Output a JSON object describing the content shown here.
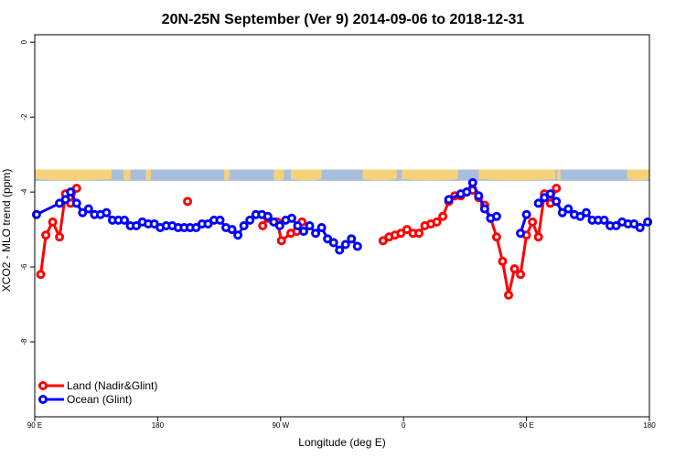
{
  "chart_data": {
    "type": "line",
    "title": "20N-25N September (Ver 9)   2014-09-06 to 2018-12-31",
    "xlabel": "Longitude (deg E)",
    "ylabel": "XCO2 - MLO trend (ppm)",
    "xlim": [
      90,
      450
    ],
    "ylim": [
      -10,
      0.2
    ],
    "x_ticks": [
      {
        "value": 90,
        "label": "90 E"
      },
      {
        "value": 162,
        "label": "180"
      },
      {
        "value": 234,
        "label": "90 W"
      },
      {
        "value": 306,
        "label": "0"
      },
      {
        "value": 378,
        "label": "90 E"
      },
      {
        "value": 450,
        "label": "180"
      }
    ],
    "y_ticks": [
      {
        "value": 0,
        "label": "0"
      },
      {
        "value": -2,
        "label": "-2"
      },
      {
        "value": -4,
        "label": "-4"
      },
      {
        "value": -6,
        "label": "-6"
      },
      {
        "value": -8,
        "label": "-8"
      }
    ],
    "legend": {
      "position": "bottom-left"
    },
    "map_strip": {
      "y_top": -3.4,
      "y_bottom": -3.7,
      "ocean_color": "#a8bedc",
      "land_color": "#f5d27a"
    },
    "series": [
      {
        "name": "Land (Nadir&Glint)",
        "color": "#ff0000",
        "segments": [
          [
            [
              93.5,
              -6.2
            ],
            [
              96.5,
              -5.15
            ],
            [
              100.5,
              -4.8
            ],
            [
              104.5,
              -5.2
            ],
            [
              108,
              -4.05
            ],
            [
              111,
              -4.3
            ],
            [
              114.5,
              -3.9
            ]
          ],
          [
            [
              179.5,
              -4.25
            ]
          ],
          [
            [
              223.5,
              -4.9
            ],
            [
              226.5,
              -4.7
            ],
            [
              232,
              -4.8
            ],
            [
              234.5,
              -5.3
            ],
            [
              240,
              -5.1
            ],
            [
              243.5,
              -5.05
            ],
            [
              246.5,
              -4.8
            ]
          ],
          [
            [
              294,
              -5.3
            ],
            [
              297.5,
              -5.2
            ],
            [
              301,
              -5.15
            ],
            [
              304.5,
              -5.1
            ],
            [
              308,
              -5.0
            ],
            [
              311.5,
              -5.1
            ],
            [
              315,
              -5.1
            ],
            [
              318.5,
              -4.9
            ],
            [
              322,
              -4.85
            ],
            [
              325.5,
              -4.8
            ],
            [
              329,
              -4.65
            ],
            [
              332.5,
              -4.25
            ],
            [
              336,
              -4.1
            ],
            [
              339.5,
              -4.1
            ],
            [
              343,
              -4.0
            ],
            [
              346.5,
              -3.95
            ],
            [
              350,
              -4.15
            ],
            [
              353.5,
              -4.35
            ],
            [
              357,
              -4.7
            ],
            [
              360.5,
              -5.2
            ],
            [
              364,
              -5.85
            ],
            [
              367.5,
              -6.75
            ],
            [
              371,
              -6.05
            ],
            [
              374.5,
              -6.2
            ],
            [
              378,
              -5.15
            ],
            [
              381.5,
              -4.8
            ],
            [
              385,
              -5.2
            ],
            [
              388.5,
              -4.05
            ],
            [
              392,
              -4.3
            ],
            [
              395.5,
              -3.9
            ]
          ]
        ]
      },
      {
        "name": "Ocean (Glint)",
        "color": "#0000ff",
        "segments": [
          [
            [
              91,
              -4.6
            ],
            [
              104.5,
              -4.3
            ],
            [
              108,
              -4.2
            ],
            [
              111,
              -4.0
            ],
            [
              114.5,
              -4.3
            ],
            [
              118,
              -4.55
            ],
            [
              121.5,
              -4.45
            ],
            [
              125,
              -4.6
            ],
            [
              128.5,
              -4.6
            ],
            [
              132,
              -4.55
            ],
            [
              135.5,
              -4.75
            ],
            [
              139,
              -4.75
            ],
            [
              142.5,
              -4.75
            ],
            [
              146,
              -4.9
            ],
            [
              149.5,
              -4.9
            ],
            [
              153,
              -4.8
            ],
            [
              156.5,
              -4.85
            ],
            [
              160,
              -4.85
            ],
            [
              163.5,
              -4.95
            ],
            [
              167,
              -4.9
            ],
            [
              170.5,
              -4.9
            ],
            [
              174,
              -4.95
            ],
            [
              177.5,
              -4.95
            ],
            [
              181,
              -4.95
            ],
            [
              184.5,
              -4.95
            ],
            [
              188,
              -4.85
            ],
            [
              191.5,
              -4.85
            ],
            [
              195,
              -4.75
            ],
            [
              198.5,
              -4.75
            ],
            [
              202,
              -4.95
            ],
            [
              205.5,
              -5.0
            ],
            [
              209,
              -5.15
            ],
            [
              212.5,
              -4.9
            ],
            [
              216,
              -4.75
            ],
            [
              219.5,
              -4.6
            ],
            [
              223,
              -4.6
            ],
            [
              226.5,
              -4.65
            ],
            [
              230,
              -4.8
            ],
            [
              233.5,
              -4.9
            ],
            [
              237,
              -4.75
            ],
            [
              240.5,
              -4.7
            ],
            [
              244,
              -4.9
            ],
            [
              247.5,
              -5.05
            ],
            [
              251,
              -4.9
            ],
            [
              254.5,
              -5.1
            ],
            [
              258,
              -4.95
            ],
            [
              261.5,
              -5.25
            ],
            [
              265,
              -5.35
            ],
            [
              268.5,
              -5.55
            ],
            [
              272,
              -5.4
            ],
            [
              275.5,
              -5.25
            ],
            [
              279,
              -5.45
            ]
          ],
          [
            [
              332.5,
              -4.2
            ],
            [
              339.5,
              -4.05
            ],
            [
              343,
              -4.0
            ],
            [
              346.5,
              -3.75
            ],
            [
              350,
              -4.1
            ],
            [
              353.5,
              -4.45
            ],
            [
              357,
              -4.7
            ],
            [
              360.5,
              -4.65
            ]
          ],
          [
            [
              374.5,
              -5.1
            ],
            [
              378,
              -4.6
            ]
          ],
          [
            [
              385,
              -4.3
            ],
            [
              388.5,
              -4.15
            ],
            [
              392,
              -4.05
            ],
            [
              395.5,
              -4.25
            ],
            [
              399,
              -4.55
            ],
            [
              402.5,
              -4.45
            ],
            [
              406,
              -4.6
            ],
            [
              409.5,
              -4.65
            ],
            [
              413,
              -4.55
            ],
            [
              416.5,
              -4.75
            ],
            [
              420,
              -4.75
            ],
            [
              423.5,
              -4.75
            ],
            [
              427,
              -4.9
            ],
            [
              430.5,
              -4.9
            ],
            [
              434,
              -4.8
            ],
            [
              437.5,
              -4.85
            ],
            [
              441,
              -4.85
            ],
            [
              444.5,
              -4.95
            ],
            [
              449,
              -4.8
            ]
          ]
        ]
      }
    ]
  }
}
